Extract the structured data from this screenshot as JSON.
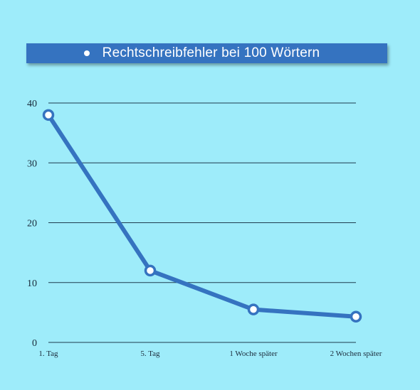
{
  "chart_data": {
    "type": "line",
    "title": "",
    "xlabel": "",
    "ylabel": "",
    "categories": [
      "1. Tag",
      "5. Tag",
      "1 Woche später",
      "2 Wochen später"
    ],
    "series": [
      {
        "name": "Rechtschreibfehler bei 100 Wörtern",
        "values": [
          38,
          12,
          5.5,
          4.3
        ]
      }
    ],
    "ylim": [
      0,
      40
    ],
    "yticks": [
      "0",
      "10",
      "20",
      "30",
      "40"
    ],
    "grid": true,
    "legend": "top",
    "colors": {
      "line": "#3573c0",
      "marker_fill": "#ffffff",
      "background": "#9eecfa",
      "legend_bg": "#3573c0"
    }
  }
}
